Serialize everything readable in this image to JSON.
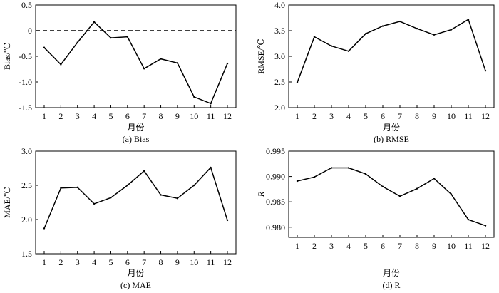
{
  "chart_data": [
    {
      "type": "line",
      "caption": "(a) Bias",
      "xlabel": "月份",
      "ylabel": "Bias/℃",
      "x": [
        1,
        2,
        3,
        4,
        5,
        6,
        7,
        8,
        9,
        10,
        11,
        12
      ],
      "y": [
        -0.33,
        -0.66,
        -0.23,
        0.17,
        -0.14,
        -0.12,
        -0.74,
        -0.55,
        -0.63,
        -1.29,
        -1.42,
        -0.64
      ],
      "ylim": [
        -1.5,
        0.5
      ],
      "yticks": [
        0.5,
        0,
        -0.5,
        -1.0,
        -1.5
      ],
      "ytick_labels": [
        "0.5",
        "0",
        "-0.5",
        "-1.0",
        "-1.5"
      ],
      "xticks": [
        "1",
        "2",
        "3",
        "4",
        "5",
        "6",
        "7",
        "8",
        "9",
        "10",
        "11",
        "12"
      ],
      "reference_line": {
        "y": 0,
        "style": "dashed"
      }
    },
    {
      "type": "line",
      "caption": "(b) RMSE",
      "xlabel": "月份",
      "ylabel": "RMSE/℃",
      "x": [
        1,
        2,
        3,
        4,
        5,
        6,
        7,
        8,
        9,
        10,
        11,
        12
      ],
      "y": [
        2.49,
        3.38,
        3.2,
        3.1,
        3.44,
        3.59,
        3.68,
        3.54,
        3.42,
        3.52,
        3.72,
        2.72
      ],
      "ylim": [
        2.0,
        4.0
      ],
      "yticks": [
        4.0,
        3.5,
        3.0,
        2.5,
        2.0
      ],
      "ytick_labels": [
        "4.0",
        "3.5",
        "3.0",
        "2.5",
        "2.0"
      ],
      "xticks": [
        "1",
        "2",
        "3",
        "4",
        "5",
        "6",
        "7",
        "8",
        "9",
        "10",
        "11",
        "12"
      ]
    },
    {
      "type": "line",
      "caption": "(c) MAE",
      "xlabel": "月份",
      "ylabel": "MAE/℃",
      "x": [
        1,
        2,
        3,
        4,
        5,
        6,
        7,
        8,
        9,
        10,
        11,
        12
      ],
      "y": [
        1.87,
        2.46,
        2.47,
        2.23,
        2.32,
        2.5,
        2.71,
        2.36,
        2.31,
        2.5,
        2.76,
        1.99
      ],
      "ylim": [
        1.5,
        3.0
      ],
      "yticks": [
        3.0,
        2.5,
        2.0,
        1.5
      ],
      "ytick_labels": [
        "3.0",
        "2.5",
        "2.0",
        "1.5"
      ],
      "xticks": [
        "1",
        "2",
        "3",
        "4",
        "5",
        "6",
        "7",
        "8",
        "9",
        "10",
        "11",
        "12"
      ]
    },
    {
      "type": "line",
      "caption": "(d) R",
      "xlabel": "月份",
      "ylabel": "R",
      "x": [
        1,
        2,
        3,
        4,
        5,
        6,
        7,
        8,
        9,
        10,
        11,
        12
      ],
      "y": [
        0.9891,
        0.9899,
        0.9917,
        0.9917,
        0.9905,
        0.988,
        0.9861,
        0.9876,
        0.9896,
        0.9865,
        0.9815,
        0.9803
      ],
      "ylim": [
        0.978,
        0.995
      ],
      "yticks": [
        0.995,
        0.99,
        0.985,
        0.98
      ],
      "ytick_labels": [
        "0.995",
        "0.990",
        "0.985",
        "0.980"
      ],
      "xticks": [
        "1",
        "2",
        "3",
        "4",
        "5",
        "6",
        "7",
        "8",
        "9",
        "10",
        "11",
        "12"
      ]
    }
  ]
}
